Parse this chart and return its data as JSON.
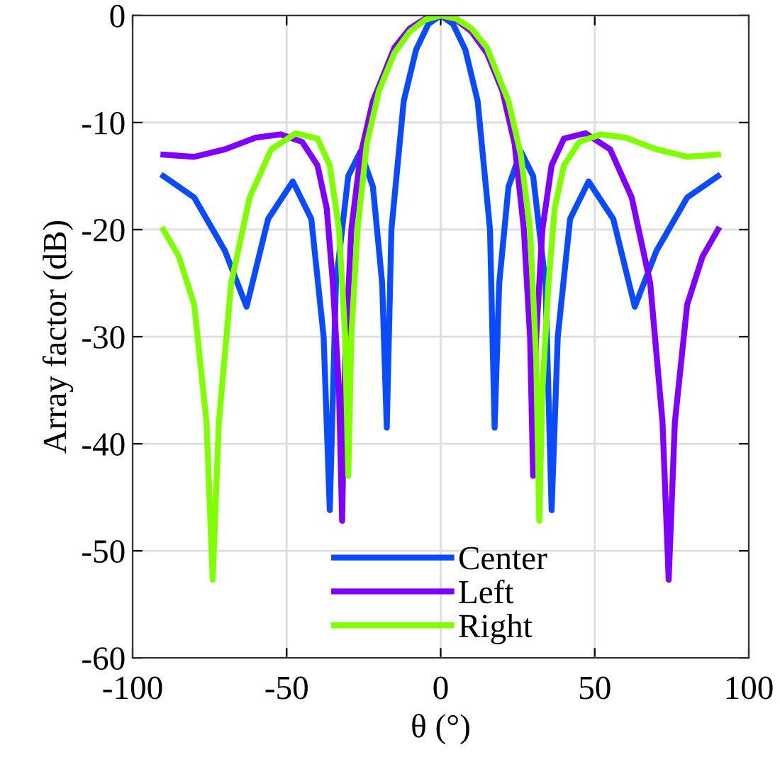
{
  "chart_data": {
    "type": "line",
    "xlabel": "θ (°)",
    "ylabel": "Array factor (dB)",
    "xlim": [
      -100,
      100
    ],
    "ylim": [
      -60,
      0
    ],
    "xticks": [
      -100,
      -50,
      0,
      50,
      100
    ],
    "yticks": [
      -60,
      -50,
      -40,
      -30,
      -20,
      -10,
      0
    ],
    "grid": true,
    "legend": "bottom",
    "line_style": "solid",
    "marker": "none",
    "series": [
      {
        "name": "Center",
        "color": "#0a4bff",
        "x": [
          -90,
          -80,
          -70,
          -63,
          -56,
          -48,
          -42,
          -38,
          -36,
          -34,
          -30,
          -26,
          -22,
          -19,
          -17.5,
          -16,
          -12,
          -8,
          -4,
          0,
          4,
          8,
          12,
          16,
          17.5,
          19,
          22,
          26,
          30,
          34,
          36,
          38,
          42,
          48,
          56,
          63,
          70,
          80,
          90
        ],
        "values": [
          -15,
          -17,
          -22,
          -27.2,
          -19,
          -15.5,
          -19,
          -30,
          -46.2,
          -25,
          -15,
          -12.7,
          -16,
          -25,
          -38.5,
          -20,
          -8,
          -3.2,
          -0.8,
          0,
          -0.8,
          -3.2,
          -8,
          -20,
          -38.5,
          -25,
          -16,
          -12.7,
          -15,
          -25,
          -46.2,
          -30,
          -19,
          -15.5,
          -19,
          -27.2,
          -22,
          -17,
          -15
        ]
      },
      {
        "name": "Left",
        "color": "#8000ff",
        "x": [
          -90,
          -80,
          -70,
          -60,
          -52,
          -45,
          -40,
          -37,
          -35,
          -33,
          -32,
          -31,
          -29,
          -26,
          -22,
          -15,
          -10,
          -5,
          0,
          5,
          10,
          15,
          20,
          24,
          27,
          29,
          30,
          31,
          33,
          36,
          40,
          47,
          55,
          62,
          68,
          72,
          74,
          76,
          80,
          85,
          90
        ],
        "values": [
          -13,
          -13.2,
          -12.5,
          -11.4,
          -11.1,
          -11.8,
          -14,
          -18,
          -25,
          -35,
          -47.2,
          -32,
          -20,
          -13,
          -8,
          -3,
          -1.2,
          -0.3,
          0,
          -0.4,
          -1.5,
          -3.5,
          -7,
          -12,
          -20,
          -30,
          -43,
          -30,
          -20,
          -14,
          -11.5,
          -11,
          -12.5,
          -17,
          -25,
          -38,
          -52.7,
          -38,
          -27,
          -22.5,
          -20
        ]
      },
      {
        "name": "Right",
        "color": "#80ff00",
        "x": [
          -90,
          -85,
          -80,
          -76,
          -74,
          -72,
          -68,
          -62,
          -55,
          -47,
          -40,
          -36,
          -33,
          -31,
          -30,
          -29,
          -27,
          -24,
          -20,
          -15,
          -10,
          -5,
          0,
          5,
          10,
          15,
          22,
          26,
          29,
          31,
          32,
          33,
          35,
          37,
          40,
          45,
          52,
          60,
          70,
          80,
          90
        ],
        "values": [
          -20,
          -22.5,
          -27,
          -38,
          -52.7,
          -38,
          -25,
          -17,
          -12.5,
          -11,
          -11.5,
          -14,
          -20,
          -30,
          -43,
          -30,
          -20,
          -12,
          -7,
          -3.5,
          -1.5,
          -0.4,
          0,
          -0.3,
          -1.2,
          -3,
          -8,
          -13,
          -20,
          -32,
          -47.2,
          -35,
          -25,
          -18,
          -14,
          -11.8,
          -11.1,
          -11.4,
          -12.5,
          -13.2,
          -13
        ]
      }
    ]
  }
}
